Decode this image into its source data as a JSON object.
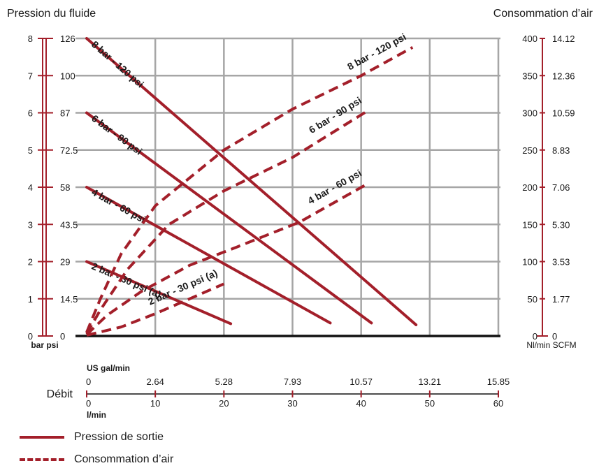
{
  "chart_data": {
    "type": "line",
    "title_left": "Pression du fluide",
    "title_right": "Consommation d’air",
    "color": "#a31f2a",
    "axes": {
      "left_bar": {
        "unit": "bar",
        "ticks": [
          0,
          1,
          2,
          3,
          4,
          5,
          6,
          7,
          8
        ]
      },
      "left_psi": {
        "unit": "psi",
        "ticks": [
          "0",
          "14.5",
          "29",
          "43.5",
          "58",
          "72.5",
          "87",
          "100",
          "126"
        ]
      },
      "right_nl": {
        "unit": "Nl/min",
        "ticks": [
          0,
          50,
          100,
          150,
          200,
          250,
          300,
          350,
          400
        ]
      },
      "right_scfm": {
        "unit": "SCFM",
        "ticks": [
          "0",
          "1.77",
          "3.53",
          "5.30",
          "7.06",
          "8.83",
          "10.59",
          "12.36",
          "14.12"
        ]
      },
      "x_gal": {
        "unit": "US gal/min",
        "ticks": [
          "0",
          "2.64",
          "5.28",
          "7.93",
          "10.57",
          "13.21",
          "15.85"
        ]
      },
      "x_l": {
        "unit": "l/min",
        "ticks": [
          0,
          10,
          20,
          30,
          40,
          50,
          60
        ]
      },
      "x_title": "Débit",
      "xlim": [
        0,
        60
      ],
      "ylim_bar": [
        0,
        8
      ],
      "ylim_nl": [
        0,
        400
      ]
    },
    "grid": true,
    "outlet_pressure": [
      {
        "name": "8 bar - 120 psi",
        "points": [
          [
            0,
            8.0
          ],
          [
            48,
            0.3
          ]
        ]
      },
      {
        "name": "6 bar - 90 psi",
        "points": [
          [
            0,
            6.0
          ],
          [
            41.5,
            0.35
          ]
        ]
      },
      {
        "name": "4 bar - 60 psi",
        "points": [
          [
            0,
            4.0
          ],
          [
            35.5,
            0.35
          ]
        ]
      },
      {
        "name": "2 bar - 30 psi (a)",
        "points": [
          [
            0,
            2.0
          ],
          [
            21,
            0.33
          ]
        ]
      }
    ],
    "air_consumption": [
      {
        "name": "8 bar - 120 psi",
        "points": [
          [
            0,
            5
          ],
          [
            2,
            50
          ],
          [
            5,
            110
          ],
          [
            10,
            175
          ],
          [
            20,
            250
          ],
          [
            30,
            305
          ],
          [
            40,
            350
          ],
          [
            47.5,
            388
          ]
        ]
      },
      {
        "name": "6 bar - 90 psi",
        "points": [
          [
            0,
            3
          ],
          [
            2,
            35
          ],
          [
            6,
            90
          ],
          [
            12,
            150
          ],
          [
            20,
            195
          ],
          [
            30,
            240
          ],
          [
            41,
            303
          ]
        ]
      },
      {
        "name": "4 bar - 60 psi",
        "points": [
          [
            0,
            2
          ],
          [
            3,
            28
          ],
          [
            8,
            60
          ],
          [
            15,
            95
          ],
          [
            22,
            120
          ],
          [
            31,
            153
          ],
          [
            41,
            205
          ]
        ]
      },
      {
        "name": "2 bar - 30 psi (a)",
        "points": [
          [
            0,
            1
          ],
          [
            5,
            12
          ],
          [
            10,
            30
          ],
          [
            15,
            50
          ],
          [
            20,
            70
          ]
        ]
      }
    ],
    "legend": [
      {
        "label": "Pression de sortie",
        "style": "solid"
      },
      {
        "label": "Consommation d’air",
        "style": "dashed"
      }
    ]
  }
}
